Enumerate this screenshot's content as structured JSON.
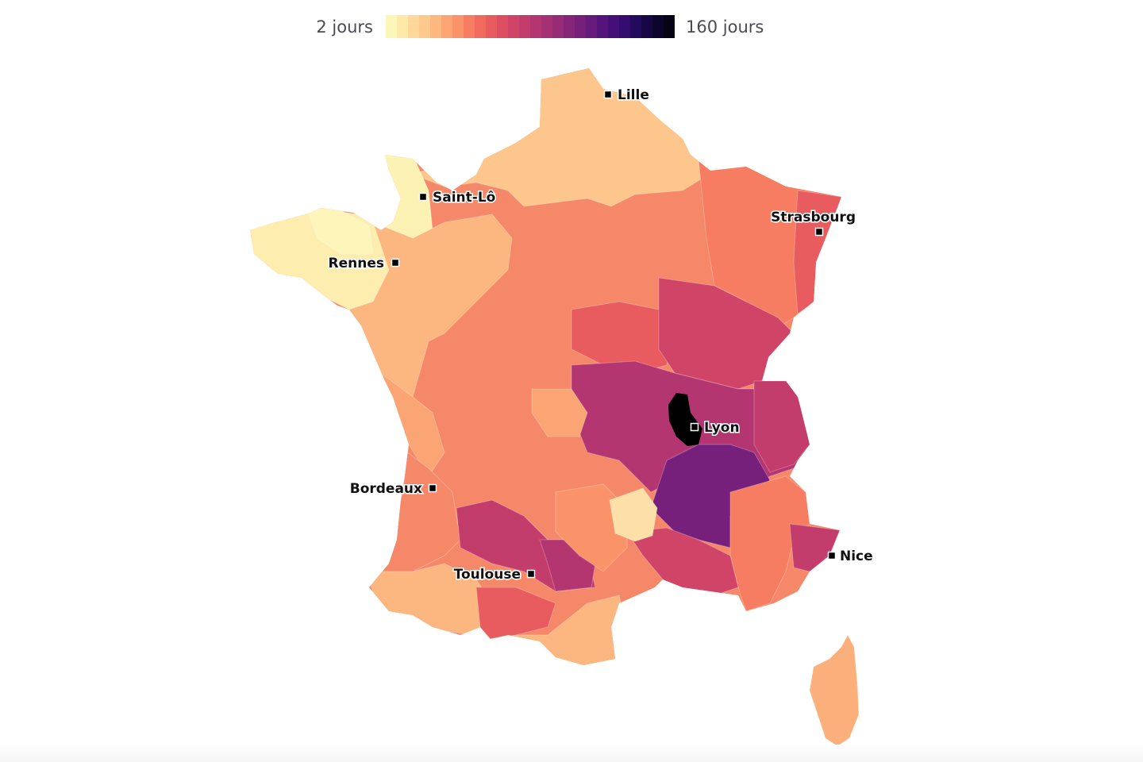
{
  "legend": {
    "min_label": "2 jours",
    "max_label": "160 jours",
    "min_value": 2,
    "max_value": 160,
    "ramp_colors": [
      "#fcf7b8",
      "#fde9a8",
      "#fed89a",
      "#fec98c",
      "#fdb880",
      "#fca574",
      "#fa926a",
      "#f67d62",
      "#f06b5e",
      "#e85b5e",
      "#dd4e62",
      "#d04467",
      "#c23c6c",
      "#b43670",
      "#a53073",
      "#962b76",
      "#862578",
      "#761f7b",
      "#661a7c",
      "#55147b",
      "#441077",
      "#340c6d",
      "#240a5c",
      "#170845",
      "#0c062d",
      "#050314"
    ]
  },
  "cities": [
    {
      "name": "Lille",
      "label_side": "right"
    },
    {
      "name": "Saint-Lô",
      "label_side": "right"
    },
    {
      "name": "Strasbourg",
      "label_side": "left-above"
    },
    {
      "name": "Rennes",
      "label_side": "left"
    },
    {
      "name": "Lyon",
      "label_side": "right"
    },
    {
      "name": "Bordeaux",
      "label_side": "left"
    },
    {
      "name": "Toulouse",
      "label_side": "left"
    },
    {
      "name": "Nice",
      "label_side": "right"
    }
  ],
  "regions": {
    "france_base_color": "#f6886a",
    "corse_color": "#fbb07b",
    "lyon_color": "#000000",
    "lozere_color": "#fddfa8"
  }
}
